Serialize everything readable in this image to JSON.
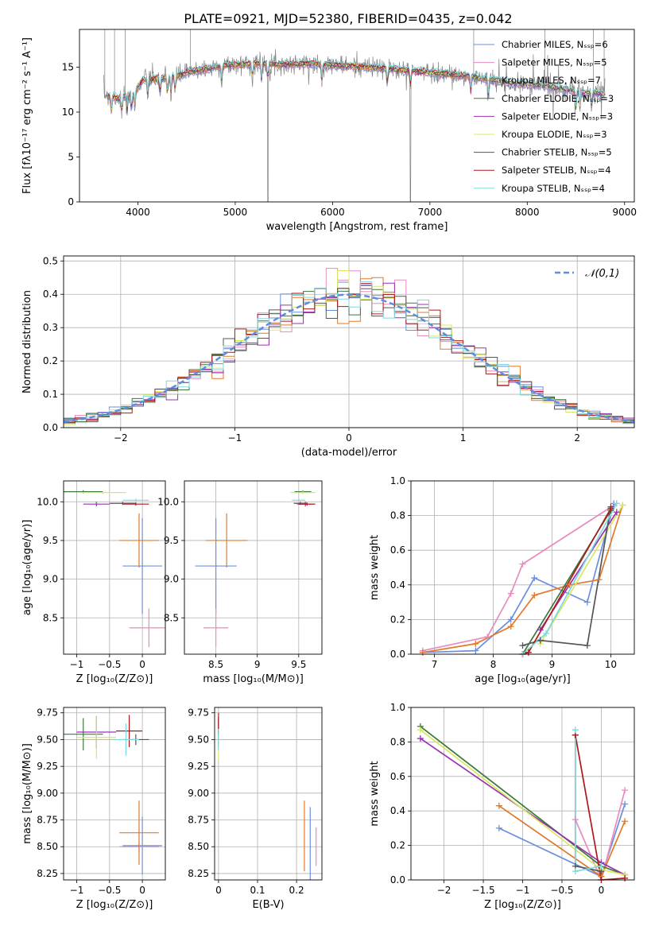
{
  "figure_title": "PLATE=0921, MJD=52380, FIBERID=0435, z=0.042",
  "series_colors": [
    "#6a8fe0",
    "#e88cbf",
    "#e07a2a",
    "#3a7a3a",
    "#9a30b0",
    "#d8e860",
    "#555555",
    "#b01818",
    "#7fd8e0"
  ],
  "chart_data": [
    {
      "id": "spectrum",
      "type": "line",
      "title": "PLATE=0921, MJD=52380, FIBERID=0435, z=0.042",
      "xlabel": "wavelength [Angstrom, rest frame]",
      "ylabel": "Flux [fλ10⁻¹⁷ erg cm⁻² s⁻¹ A⁻¹]",
      "xlim": [
        3400,
        9100
      ],
      "ylim": [
        0,
        19.2
      ],
      "xticks": [
        4000,
        5000,
        6000,
        7000,
        8000,
        9000
      ],
      "yticks": [
        0,
        5,
        10,
        15
      ],
      "legend_position": "upper right",
      "legend": [
        {
          "label": "Chabrier MILES, Nₛₛₚ=6",
          "color": "#6a8fe0"
        },
        {
          "label": "Salpeter MILES, Nₛₛₚ=5",
          "color": "#e88cbf"
        },
        {
          "label": "Kroupa MILES, Nₛₛₚ=7",
          "color": "#e07a2a"
        },
        {
          "label": "Chabrier ELODIE, Nₛₛₚ=3",
          "color": "#3a7a3a"
        },
        {
          "label": "Salpeter ELODIE, Nₛₛₚ=3",
          "color": "#9a30b0"
        },
        {
          "label": "Kroupa ELODIE, Nₛₛₚ=3",
          "color": "#d8e860"
        },
        {
          "label": "Chabrier STELIB, Nₛₛₚ=5",
          "color": "#555555"
        },
        {
          "label": "Salpeter STELIB, Nₛₛₚ=4",
          "color": "#b01818"
        },
        {
          "label": "Kroupa STELIB, Nₛₛₚ=4",
          "color": "#7fd8e0"
        }
      ],
      "data_continuum": [
        [
          3650,
          12.0
        ],
        [
          3800,
          11.5
        ],
        [
          3950,
          12.0
        ],
        [
          4050,
          13.6
        ],
        [
          4300,
          13.8
        ],
        [
          4600,
          14.6
        ],
        [
          4900,
          15.2
        ],
        [
          5200,
          15.4
        ],
        [
          5500,
          15.3
        ],
        [
          5800,
          15.4
        ],
        [
          6200,
          15.1
        ],
        [
          6600,
          14.8
        ],
        [
          7000,
          14.4
        ],
        [
          7400,
          14.0
        ],
        [
          7800,
          13.3
        ],
        [
          8200,
          12.9
        ],
        [
          8500,
          12.3
        ],
        [
          8800,
          12.0
        ]
      ],
      "model_range": [
        3650,
        8800
      ]
    },
    {
      "id": "residuals",
      "type": "step",
      "xlabel": "(data-model)/error",
      "ylabel": "Normed distribution",
      "xlim": [
        -2.5,
        2.5
      ],
      "ylim": [
        0,
        0.515
      ],
      "xticks": [
        -2,
        -1,
        0,
        1,
        2
      ],
      "yticks": [
        0.0,
        0.1,
        0.2,
        0.3,
        0.4,
        0.5
      ],
      "reference_label": "𝒩(0,1)",
      "bin_width": 0.1
    },
    {
      "id": "age_vs_Z",
      "type": "errorbar",
      "xlabel": "Z [log₁₀(Z/Z⊙)]",
      "ylabel": "age  [log₁₀(age/yr)]",
      "xlim": [
        -1.2,
        0.35
      ],
      "ylim": [
        8.03,
        10.27
      ],
      "xticks": [
        -1.0,
        -0.5,
        0.0
      ],
      "yticks": [
        8.5,
        9.0,
        9.5,
        10.0
      ],
      "points": [
        {
          "series": 0,
          "x": 0.0,
          "y": 9.17,
          "xerr": 0.3,
          "yerr": 0.62
        },
        {
          "series": 1,
          "x": 0.1,
          "y": 8.37,
          "xerr": 0.3,
          "yerr": 0.25
        },
        {
          "series": 2,
          "x": -0.05,
          "y": 9.5,
          "xerr": 0.3,
          "yerr": 0.35
        },
        {
          "series": 3,
          "x": -0.9,
          "y": 10.13,
          "xerr": 0.3,
          "yerr": 0.02
        },
        {
          "series": 4,
          "x": -0.7,
          "y": 9.97,
          "xerr": 0.2,
          "yerr": 0.03
        },
        {
          "series": 5,
          "x": -0.6,
          "y": 10.12,
          "xerr": 0.35,
          "yerr": 0.02
        },
        {
          "series": 6,
          "x": -0.3,
          "y": 9.98,
          "xerr": 0.2,
          "yerr": 0.02
        },
        {
          "series": 7,
          "x": -0.1,
          "y": 9.97,
          "xerr": 0.2,
          "yerr": 0.02
        },
        {
          "series": 8,
          "x": -0.1,
          "y": 10.02,
          "xerr": 0.2,
          "yerr": 0.02
        }
      ]
    },
    {
      "id": "age_vs_mass",
      "type": "errorbar",
      "xlabel": "mass [log₁₀(M/M⊙)]",
      "xlim": [
        8.12,
        9.78
      ],
      "ylim": [
        8.03,
        10.27
      ],
      "xticks": [
        8.5,
        9.0,
        9.5
      ],
      "yticks": [
        8.5,
        9.0,
        9.5,
        10.0
      ],
      "points": [
        {
          "series": 0,
          "x": 8.5,
          "y": 9.17,
          "xerr": 0.25,
          "yerr": 0.62
        },
        {
          "series": 1,
          "x": 8.5,
          "y": 8.37,
          "xerr": 0.15,
          "yerr": 0.25
        },
        {
          "series": 2,
          "x": 8.63,
          "y": 9.5,
          "xerr": 0.25,
          "yerr": 0.35
        },
        {
          "series": 3,
          "x": 9.55,
          "y": 10.13,
          "xerr": 0.1,
          "yerr": 0.02
        },
        {
          "series": 4,
          "x": 9.58,
          "y": 9.97,
          "xerr": 0.1,
          "yerr": 0.03
        },
        {
          "series": 5,
          "x": 9.55,
          "y": 10.12,
          "xerr": 0.15,
          "yerr": 0.02
        },
        {
          "series": 6,
          "x": 9.52,
          "y": 9.98,
          "xerr": 0.08,
          "yerr": 0.02
        },
        {
          "series": 7,
          "x": 9.6,
          "y": 9.97,
          "xerr": 0.1,
          "yerr": 0.02
        },
        {
          "series": 8,
          "x": 9.5,
          "y": 10.02,
          "xerr": 0.08,
          "yerr": 0.02
        }
      ]
    },
    {
      "id": "mass_weight_vs_age",
      "type": "line",
      "xlabel": "age  [log₁₀(age/yr)]",
      "ylabel": "mass weight",
      "xlim": [
        6.6,
        10.4
      ],
      "ylim": [
        0,
        1
      ],
      "xticks": [
        7,
        8,
        9,
        10
      ],
      "yticks": [
        0.0,
        0.2,
        0.4,
        0.6,
        0.8,
        1.0
      ],
      "series": [
        {
          "series": 0,
          "points": [
            [
              6.8,
              0.01
            ],
            [
              7.7,
              0.02
            ],
            [
              8.3,
              0.2
            ],
            [
              8.7,
              0.44
            ],
            [
              9.6,
              0.3
            ],
            [
              10.05,
              0.87
            ]
          ]
        },
        {
          "series": 1,
          "points": [
            [
              6.8,
              0.02
            ],
            [
              7.9,
              0.1
            ],
            [
              8.3,
              0.35
            ],
            [
              8.5,
              0.52
            ],
            [
              10.1,
              0.87
            ]
          ]
        },
        {
          "series": 2,
          "points": [
            [
              6.8,
              0.01
            ],
            [
              7.7,
              0.06
            ],
            [
              8.3,
              0.16
            ],
            [
              8.7,
              0.34
            ],
            [
              9.3,
              0.4
            ],
            [
              9.8,
              0.43
            ],
            [
              10.2,
              0.86
            ]
          ]
        },
        {
          "series": 3,
          "points": [
            [
              8.5,
              0.0
            ],
            [
              10.0,
              0.83
            ]
          ]
        },
        {
          "series": 4,
          "points": [
            [
              8.8,
              0.14
            ],
            [
              10.1,
              0.82
            ]
          ]
        },
        {
          "series": 5,
          "points": [
            [
              8.8,
              0.06
            ],
            [
              10.2,
              0.86
            ]
          ]
        },
        {
          "series": 6,
          "points": [
            [
              8.5,
              0.05
            ],
            [
              8.8,
              0.08
            ],
            [
              9.6,
              0.05
            ],
            [
              10.0,
              0.85
            ]
          ]
        },
        {
          "series": 7,
          "points": [
            [
              8.5,
              0.0
            ],
            [
              8.6,
              0.01
            ],
            [
              10.0,
              0.84
            ]
          ]
        },
        {
          "series": 8,
          "points": [
            [
              8.5,
              0.0
            ],
            [
              8.9,
              0.12
            ],
            [
              10.1,
              0.87
            ]
          ]
        }
      ]
    },
    {
      "id": "mass_vs_Z",
      "type": "errorbar",
      "xlabel": "Z [log₁₀(Z/Z⊙)]",
      "ylabel": "mass [log₁₀(M/M⊙)]",
      "xlim": [
        -1.2,
        0.35
      ],
      "ylim": [
        8.19,
        9.8
      ],
      "xticks": [
        -1.0,
        -0.5,
        0.0
      ],
      "yticks": [
        8.25,
        8.5,
        8.75,
        9.0,
        9.25,
        9.5,
        9.75
      ],
      "points": [
        {
          "series": 0,
          "x": 0.0,
          "y": 8.51,
          "xerr": 0.3,
          "yerr": 0.27
        },
        {
          "series": 1,
          "x": -0.05,
          "y": 8.5,
          "xerr": 0.3,
          "yerr": 0.05
        },
        {
          "series": 2,
          "x": -0.05,
          "y": 8.63,
          "xerr": 0.3,
          "yerr": 0.3
        },
        {
          "series": 3,
          "x": -0.9,
          "y": 9.55,
          "xerr": 0.3,
          "yerr": 0.15
        },
        {
          "series": 4,
          "x": -0.7,
          "y": 9.57,
          "xerr": 0.3,
          "yerr": 0.15
        },
        {
          "series": 5,
          "x": -0.7,
          "y": 9.52,
          "xerr": 0.3,
          "yerr": 0.2
        },
        {
          "series": 6,
          "x": -0.1,
          "y": 9.5,
          "xerr": 0.2,
          "yerr": 0.05
        },
        {
          "series": 7,
          "x": -0.2,
          "y": 9.58,
          "xerr": 0.2,
          "yerr": 0.15
        },
        {
          "series": 8,
          "x": -0.25,
          "y": 9.5,
          "xerr": 0.2,
          "yerr": 0.15
        }
      ]
    },
    {
      "id": "mass_vs_ebv",
      "type": "errorbar",
      "xlabel": "E(B-V)",
      "xlim": [
        -0.01,
        0.265
      ],
      "ylim": [
        8.19,
        9.8
      ],
      "xticks": [
        0.0,
        0.1,
        0.2
      ],
      "yticks": [
        8.25,
        8.5,
        8.75,
        9.0,
        9.25,
        9.5,
        9.75
      ],
      "points": [
        {
          "series": 0,
          "x": 0.235,
          "y": 8.51,
          "xerr": 0,
          "yerr": 0.36
        },
        {
          "series": 1,
          "x": 0.25,
          "y": 8.5,
          "xerr": 0,
          "yerr": 0.18
        },
        {
          "series": 2,
          "x": 0.22,
          "y": 8.6,
          "xerr": 0,
          "yerr": 0.33
        },
        {
          "series": 3,
          "x": 0.0,
          "y": 9.55,
          "xerr": 0,
          "yerr": 0.12
        },
        {
          "series": 4,
          "x": 0.0,
          "y": 9.58,
          "xerr": 0,
          "yerr": 0.13
        },
        {
          "series": 5,
          "x": 0.0,
          "y": 9.5,
          "xerr": 0,
          "yerr": 0.18
        },
        {
          "series": 6,
          "x": 0.0,
          "y": 9.62,
          "xerr": 0,
          "yerr": 0.08
        },
        {
          "series": 7,
          "x": 0.0,
          "y": 9.65,
          "xerr": 0,
          "yerr": 0.1
        },
        {
          "series": 8,
          "x": 0.0,
          "y": 9.5,
          "xerr": 0,
          "yerr": 0.1
        }
      ]
    },
    {
      "id": "mass_weight_vs_Z",
      "type": "line",
      "xlabel": "Z [log₁₀(Z/Z⊙)]",
      "ylabel": "mass weight",
      "xlim": [
        -2.42,
        0.42
      ],
      "ylim": [
        0,
        1
      ],
      "xticks": [
        -2.0,
        -1.5,
        -1.0,
        -0.5,
        0.0
      ],
      "yticks": [
        0.0,
        0.2,
        0.4,
        0.6,
        0.8,
        1.0
      ],
      "series": [
        {
          "series": 0,
          "points": [
            [
              -1.3,
              0.3
            ],
            [
              0.0,
              0.02
            ],
            [
              0.3,
              0.44
            ]
          ]
        },
        {
          "series": 1,
          "points": [
            [
              -0.33,
              0.35
            ],
            [
              0.0,
              0.0
            ],
            [
              0.3,
              0.52
            ]
          ]
        },
        {
          "series": 2,
          "points": [
            [
              -1.3,
              0.43
            ],
            [
              0.0,
              0.02
            ],
            [
              0.3,
              0.34
            ]
          ]
        },
        {
          "series": 3,
          "points": [
            [
              -2.3,
              0.89
            ],
            [
              0.0,
              0.08
            ],
            [
              0.3,
              0.03
            ]
          ]
        },
        {
          "series": 4,
          "points": [
            [
              -2.3,
              0.82
            ],
            [
              0.0,
              0.1
            ],
            [
              0.3,
              0.03
            ]
          ]
        },
        {
          "series": 5,
          "points": [
            [
              -2.3,
              0.87
            ],
            [
              0.0,
              0.06
            ],
            [
              0.3,
              0.03
            ]
          ]
        },
        {
          "series": 6,
          "points": [
            [
              -0.33,
              0.84
            ],
            [
              -0.33,
              0.08
            ],
            [
              0.0,
              0.05
            ]
          ]
        },
        {
          "series": 7,
          "points": [
            [
              -0.33,
              0.84
            ],
            [
              0.0,
              0.0
            ],
            [
              0.3,
              0.01
            ]
          ]
        },
        {
          "series": 8,
          "points": [
            [
              -0.33,
              0.87
            ],
            [
              -0.33,
              0.05
            ],
            [
              0.0,
              0.08
            ]
          ]
        }
      ]
    }
  ]
}
